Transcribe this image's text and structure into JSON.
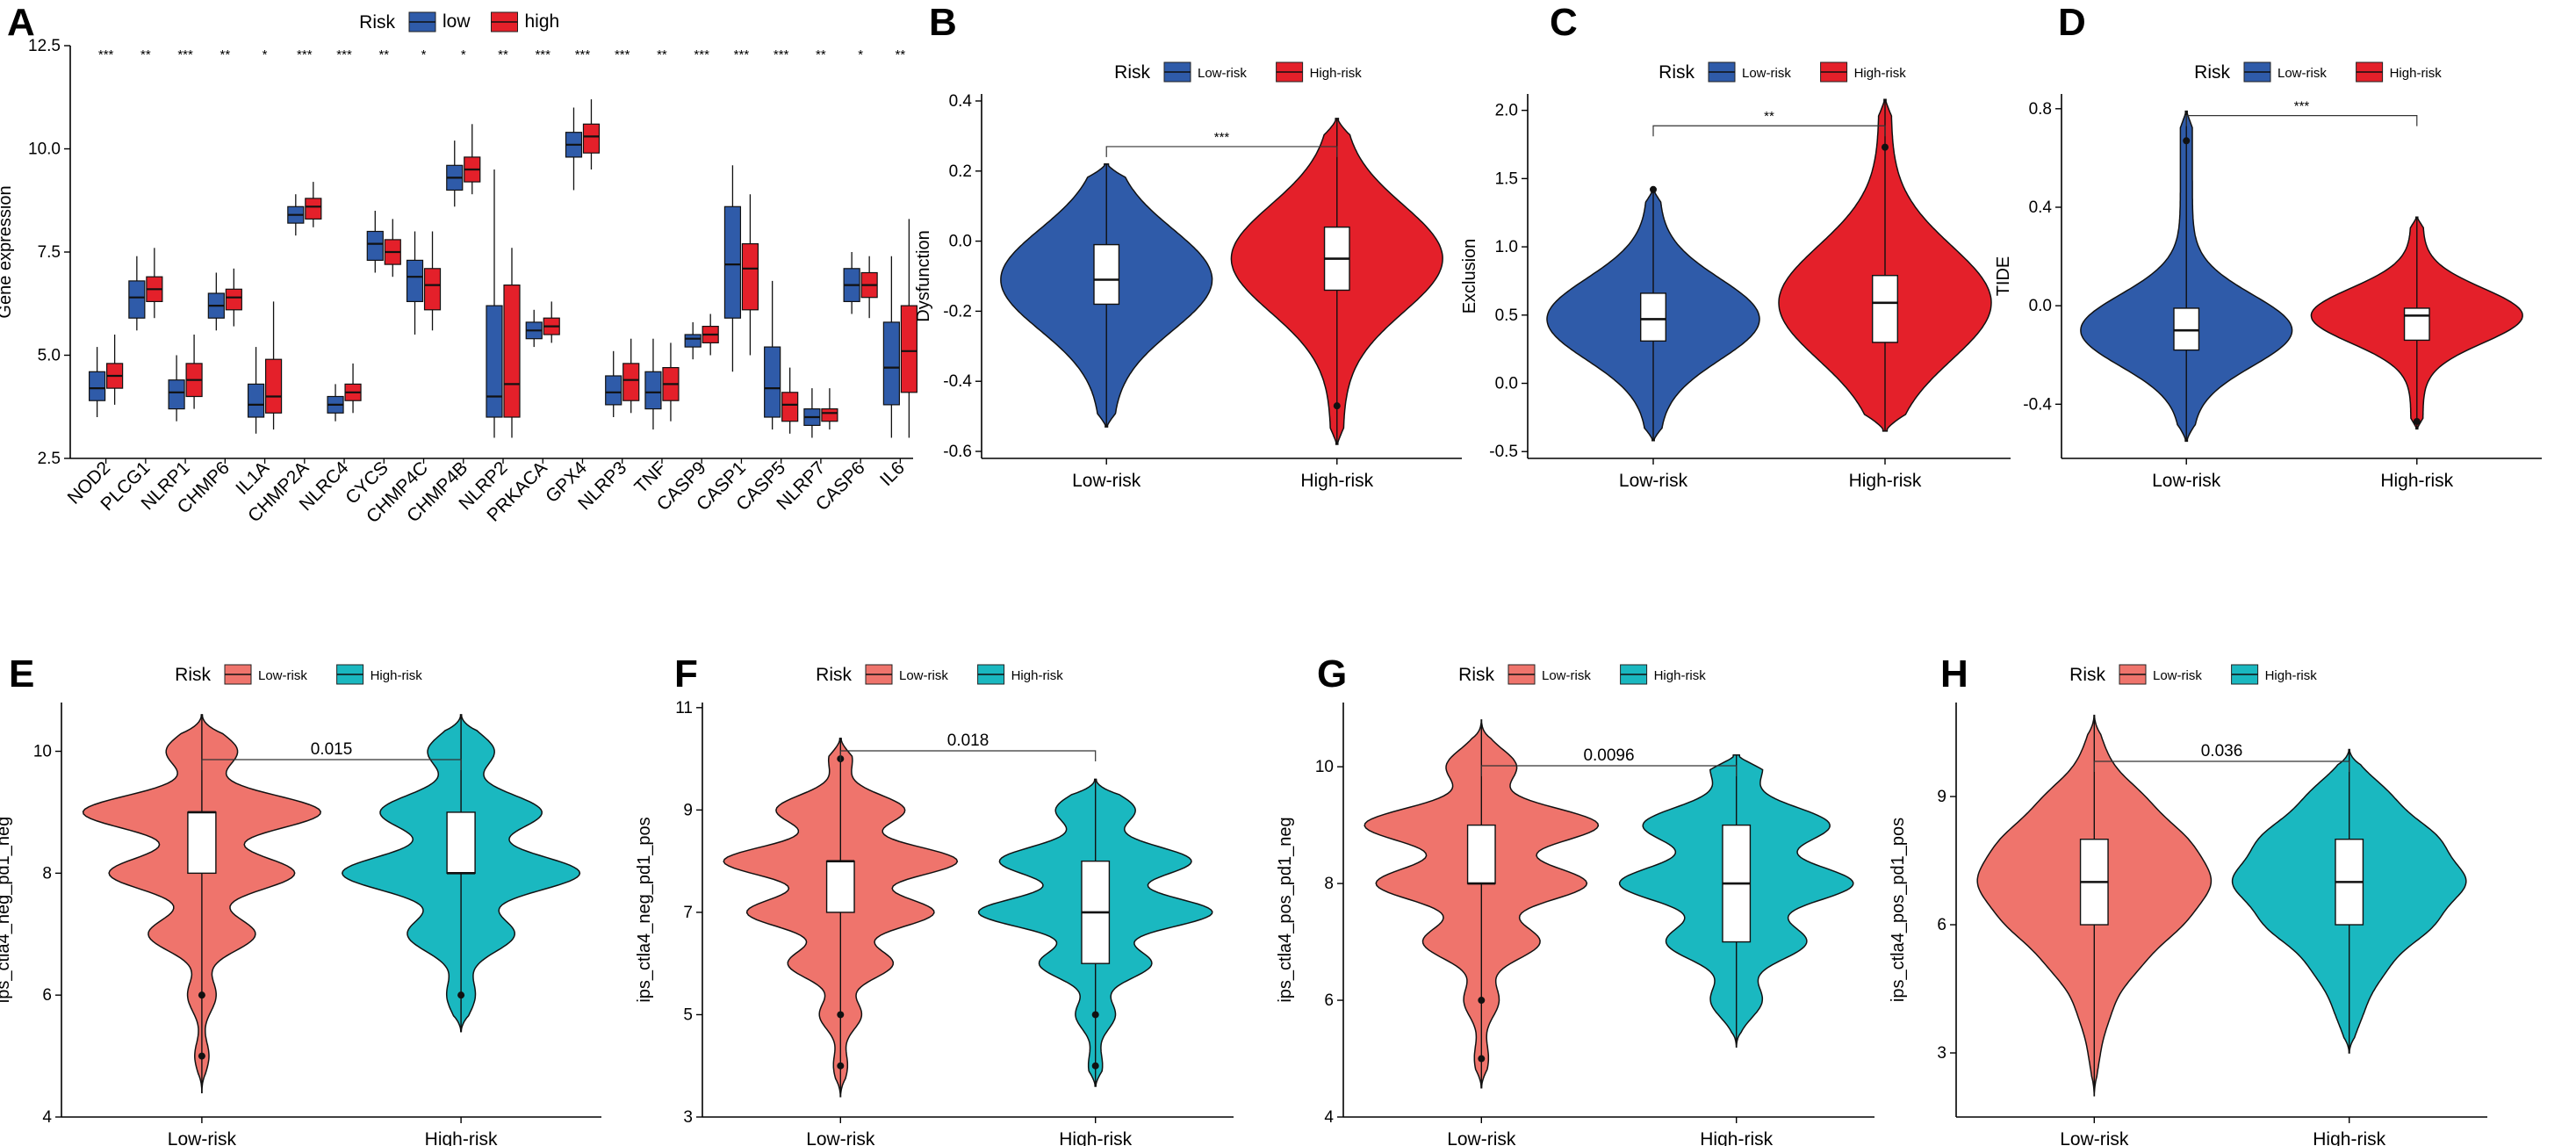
{
  "figure": {
    "colors": {
      "low_blue": "#2f5ba9",
      "high_red": "#e4202a",
      "low_salmon": "#ef746c",
      "high_teal": "#1ab8c0"
    },
    "legend_title": "Risk"
  },
  "chart_data": [
    {
      "panel": "A",
      "type": "box",
      "ylabel": "Gene expression",
      "ylim": [
        2.5,
        12.5
      ],
      "yticks": [
        "2.5",
        "5.0",
        "7.5",
        "10.0",
        "12.5"
      ],
      "legend": [
        "low",
        "high"
      ],
      "genes": [
        "NOD2",
        "PLCG1",
        "NLRP1",
        "CHMP6",
        "IL1A",
        "CHMP2A",
        "NLRC4",
        "CYCS",
        "CHMP4C",
        "CHMP4B",
        "NLRP2",
        "PRKACA",
        "GPX4",
        "NLRP3",
        "TNF",
        "CASP9",
        "CASP1",
        "CASP5",
        "NLRP7",
        "CASP6",
        "IL6"
      ],
      "significance": [
        "***",
        "**",
        "***",
        "**",
        "*",
        "***",
        "***",
        "**",
        "*",
        "*",
        "**",
        "***",
        "***",
        "***",
        "**",
        "***",
        "***",
        "***",
        "**",
        "*",
        "**"
      ],
      "series": [
        {
          "name": "low",
          "stats": [
            [
              3.5,
              3.9,
              4.2,
              4.6,
              5.2
            ],
            [
              5.6,
              5.9,
              6.4,
              6.8,
              7.4
            ],
            [
              3.4,
              3.7,
              4.1,
              4.4,
              5.0
            ],
            [
              5.6,
              5.9,
              6.2,
              6.5,
              7.0
            ],
            [
              3.1,
              3.5,
              3.8,
              4.3,
              5.2
            ],
            [
              7.9,
              8.2,
              8.4,
              8.6,
              8.9
            ],
            [
              3.4,
              3.6,
              3.8,
              4.0,
              4.3
            ],
            [
              7.0,
              7.3,
              7.7,
              8.0,
              8.5
            ],
            [
              5.5,
              6.3,
              6.9,
              7.3,
              8.0
            ],
            [
              8.6,
              9.0,
              9.3,
              9.6,
              10.2
            ],
            [
              3.0,
              3.5,
              4.0,
              6.2,
              9.5
            ],
            [
              5.2,
              5.4,
              5.6,
              5.8,
              6.1
            ],
            [
              9.0,
              9.8,
              10.1,
              10.4,
              11.0
            ],
            [
              3.5,
              3.8,
              4.1,
              4.5,
              5.1
            ],
            [
              3.2,
              3.7,
              4.1,
              4.6,
              5.4
            ],
            [
              4.9,
              5.2,
              5.4,
              5.5,
              5.8
            ],
            [
              4.6,
              5.9,
              7.2,
              8.6,
              9.6
            ],
            [
              3.2,
              3.5,
              4.2,
              5.2,
              6.8
            ],
            [
              3.0,
              3.3,
              3.5,
              3.7,
              4.2
            ],
            [
              6.0,
              6.3,
              6.7,
              7.1,
              7.5
            ],
            [
              3.0,
              3.8,
              4.7,
              5.8,
              7.4
            ]
          ]
        },
        {
          "name": "high",
          "stats": [
            [
              3.8,
              4.2,
              4.5,
              4.8,
              5.5
            ],
            [
              5.9,
              6.3,
              6.6,
              6.9,
              7.6
            ],
            [
              3.7,
              4.0,
              4.4,
              4.8,
              5.5
            ],
            [
              5.7,
              6.1,
              6.4,
              6.6,
              7.1
            ],
            [
              3.2,
              3.6,
              4.0,
              4.9,
              6.3
            ],
            [
              8.1,
              8.3,
              8.6,
              8.8,
              9.2
            ],
            [
              3.6,
              3.9,
              4.1,
              4.3,
              4.8
            ],
            [
              6.9,
              7.2,
              7.5,
              7.8,
              8.3
            ],
            [
              5.6,
              6.1,
              6.7,
              7.1,
              8.0
            ],
            [
              8.9,
              9.2,
              9.5,
              9.8,
              10.6
            ],
            [
              3.0,
              3.5,
              4.3,
              6.7,
              7.6
            ],
            [
              5.3,
              5.5,
              5.7,
              5.9,
              6.3
            ],
            [
              9.5,
              9.9,
              10.3,
              10.6,
              11.2
            ],
            [
              3.6,
              3.9,
              4.4,
              4.8,
              5.4
            ],
            [
              3.4,
              3.9,
              4.3,
              4.7,
              5.3
            ],
            [
              5.0,
              5.3,
              5.5,
              5.7,
              6.0
            ],
            [
              5.0,
              6.1,
              7.1,
              7.7,
              8.9
            ],
            [
              3.1,
              3.4,
              3.8,
              4.1,
              4.7
            ],
            [
              3.2,
              3.4,
              3.6,
              3.7,
              4.2
            ],
            [
              5.9,
              6.4,
              6.7,
              7.0,
              7.4
            ],
            [
              3.0,
              4.1,
              5.1,
              6.2,
              8.3
            ]
          ]
        }
      ]
    },
    {
      "panel": "B",
      "type": "violin",
      "ylabel": "Dysfunction",
      "ylim": [
        -0.62,
        0.42
      ],
      "yticks": [
        "-0.6",
        "-0.4",
        "-0.2",
        "0.0",
        "0.2",
        "0.4"
      ],
      "categories": [
        "Low-risk",
        "High-risk"
      ],
      "legend": [
        "Low-risk",
        "High-risk"
      ],
      "significance": "***",
      "groups": [
        {
          "name": "Low-risk",
          "min": -0.53,
          "q1": -0.18,
          "median": -0.11,
          "q3": -0.01,
          "max": 0.22
        },
        {
          "name": "High-risk",
          "min": -0.58,
          "q1": -0.14,
          "median": -0.05,
          "q3": 0.04,
          "max": 0.35
        }
      ]
    },
    {
      "panel": "C",
      "type": "violin",
      "ylabel": "Exclusion",
      "ylim": [
        -0.55,
        2.12
      ],
      "yticks": [
        "-0.5",
        "0.0",
        "0.5",
        "1.0",
        "1.5",
        "2.0"
      ],
      "categories": [
        "Low-risk",
        "High-risk"
      ],
      "legend": [
        "Low-risk",
        "High-risk"
      ],
      "significance": "**",
      "groups": [
        {
          "name": "Low-risk",
          "min": -0.42,
          "q1": 0.31,
          "median": 0.47,
          "q3": 0.66,
          "max": 1.42
        },
        {
          "name": "High-risk",
          "min": -0.35,
          "q1": 0.3,
          "median": 0.59,
          "q3": 0.79,
          "max": 2.08
        }
      ]
    },
    {
      "panel": "D",
      "type": "violin",
      "ylabel": "TIDE",
      "ylim": [
        -0.62,
        0.86
      ],
      "yticks": [
        "-0.4",
        "0.0",
        "0.4",
        "0.8"
      ],
      "categories": [
        "Low-risk",
        "High-risk"
      ],
      "legend": [
        "Low-risk",
        "High-risk"
      ],
      "significance": "***",
      "groups": [
        {
          "name": "Low-risk",
          "min": -0.55,
          "q1": -0.18,
          "median": -0.1,
          "q3": -0.01,
          "max": 0.79
        },
        {
          "name": "High-risk",
          "min": -0.5,
          "q1": -0.14,
          "median": -0.04,
          "q3": -0.01,
          "max": 0.36
        }
      ]
    },
    {
      "panel": "E",
      "type": "violin",
      "ylabel": "ips_ctla4_neg_pd1_neg",
      "ylim": [
        4,
        10.8
      ],
      "yticks": [
        "4",
        "6",
        "8",
        "10"
      ],
      "categories": [
        "Low-risk",
        "High-risk"
      ],
      "legend": [
        "Low-risk",
        "High-risk"
      ],
      "pvalue": "0.015",
      "groups": [
        {
          "name": "Low-risk",
          "min": 4.4,
          "q1": 8.0,
          "median": 9.0,
          "q3": 9.0,
          "max": 10.6
        },
        {
          "name": "High-risk",
          "min": 5.4,
          "q1": 8.0,
          "median": 8.0,
          "q3": 9.0,
          "max": 10.6
        }
      ]
    },
    {
      "panel": "F",
      "type": "violin",
      "ylabel": "ips_ctla4_neg_pd1_pos",
      "ylim": [
        3,
        11.1
      ],
      "yticks": [
        "3",
        "5",
        "7",
        "9",
        "11"
      ],
      "categories": [
        "Low-risk",
        "High-risk"
      ],
      "legend": [
        "Low-risk",
        "High-risk"
      ],
      "pvalue": "0.018",
      "groups": [
        {
          "name": "Low-risk",
          "min": 3.4,
          "q1": 7.0,
          "median": 8.0,
          "q3": 8.0,
          "max": 10.4
        },
        {
          "name": "High-risk",
          "min": 3.6,
          "q1": 6.0,
          "median": 7.0,
          "q3": 8.0,
          "max": 9.6
        }
      ]
    },
    {
      "panel": "G",
      "type": "violin",
      "ylabel": "ips_ctla4_pos_pd1_neg",
      "ylim": [
        4,
        11.1
      ],
      "yticks": [
        "4",
        "6",
        "8",
        "10"
      ],
      "categories": [
        "Low-risk",
        "High-risk"
      ],
      "legend": [
        "Low-risk",
        "High-risk"
      ],
      "pvalue": "0.0096",
      "groups": [
        {
          "name": "Low-risk",
          "min": 4.5,
          "q1": 8.0,
          "median": 8.0,
          "q3": 9.0,
          "max": 10.8
        },
        {
          "name": "High-risk",
          "min": 5.2,
          "q1": 7.0,
          "median": 8.0,
          "q3": 9.0,
          "max": 10.2
        }
      ]
    },
    {
      "panel": "H",
      "type": "violin",
      "ylabel": "ips_ctla4_pos_pd1_pos",
      "ylim": [
        1.5,
        11.2
      ],
      "yticks": [
        "3",
        "6",
        "9"
      ],
      "categories": [
        "Low-risk",
        "High-risk"
      ],
      "legend": [
        "Low-risk",
        "High-risk"
      ],
      "pvalue": "0.036",
      "groups": [
        {
          "name": "Low-risk",
          "min": 2.0,
          "q1": 6.0,
          "median": 7.0,
          "q3": 8.0,
          "max": 10.9
        },
        {
          "name": "High-risk",
          "min": 3.0,
          "q1": 6.0,
          "median": 7.0,
          "q3": 8.0,
          "max": 10.1
        }
      ]
    }
  ]
}
